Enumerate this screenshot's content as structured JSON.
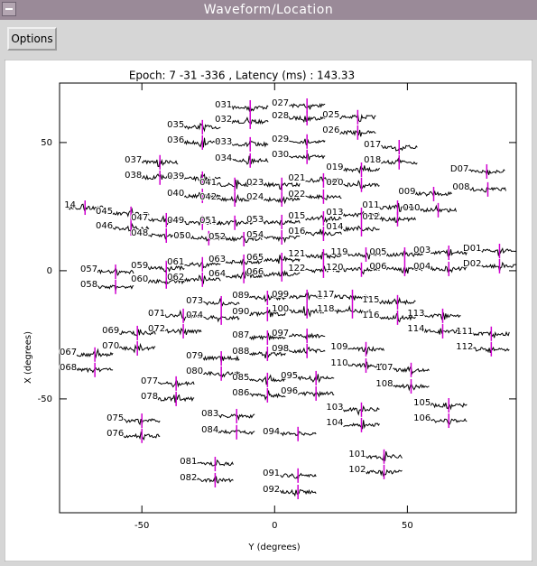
{
  "window": {
    "title": "Waveform/Location"
  },
  "toolbar": {
    "button": "Options"
  },
  "chart_data": {
    "type": "scatter",
    "title": "Epoch: 7 -31 -336 , Latency (ms) : 143.33",
    "x_label": "Y (degrees)",
    "y_label": "X (degrees)",
    "xlim": [
      -81,
      91
    ],
    "ylim": [
      -94.4,
      73.2
    ],
    "xticks": [
      -50,
      0,
      50
    ],
    "yticks": [
      -50,
      0,
      50
    ],
    "color": "#d000d0",
    "labels": [
      "031",
      "027",
      "032",
      "028",
      "025",
      "035",
      "029",
      "026",
      "036",
      "033",
      "017",
      "030",
      "034",
      "018",
      "037",
      "019",
      "D07",
      "038",
      "039",
      "021",
      "041",
      "023",
      "020",
      "009",
      "008",
      "040",
      "042",
      "024",
      "022",
      "011",
      "010",
      "14",
      "045",
      "047",
      "049",
      "051",
      "053",
      "015",
      "013",
      "012",
      "046",
      "048",
      "050",
      "052",
      "054",
      "016",
      "014",
      "119",
      "005",
      "003",
      "D01",
      "121",
      "059",
      "061",
      "063",
      "065",
      "057",
      "122",
      "120",
      "006",
      "004",
      "D02",
      "058",
      "060",
      "062",
      "064",
      "066",
      "073",
      "089",
      "099",
      "117",
      "115",
      "113",
      "090",
      "100",
      "118",
      "116",
      "071",
      "074",
      "072",
      "069",
      "114",
      "111",
      "087",
      "097",
      "070",
      "088",
      "098",
      "109",
      "112",
      "067",
      "079",
      "068",
      "110",
      "107",
      "080",
      "085",
      "095",
      "077",
      "108",
      "086",
      "096",
      "078",
      "105",
      "083",
      "103",
      "075",
      "106",
      "104",
      "084",
      "094",
      "076",
      "101",
      "081",
      "102",
      "091",
      "082",
      "092"
    ],
    "x": [
      -9.2,
      12.2,
      -9.2,
      12.2,
      31.3,
      -27.2,
      12.2,
      31.3,
      -27.2,
      -9.2,
      46.9,
      12.2,
      -9.2,
      46.9,
      -43.2,
      32.7,
      79.9,
      -43.2,
      -27.2,
      18.4,
      -15,
      2.7,
      32.7,
      59.9,
      80.3,
      -27.2,
      -15,
      2.7,
      18.4,
      46.3,
      61.6,
      -71.4,
      -54.1,
      -40.8,
      -27.2,
      -15,
      2.7,
      18.4,
      32.7,
      46.3,
      -54.1,
      -40.8,
      -24.8,
      -11.6,
      2.7,
      18.4,
      32.7,
      34.4,
      49,
      65.6,
      84.7,
      18.4,
      -40.8,
      -27.2,
      -11.6,
      2.7,
      -59.9,
      18.4,
      32.7,
      49,
      65.6,
      84.7,
      -59.9,
      -40.8,
      -27.2,
      -11.6,
      2.7,
      -20.1,
      -2.7,
      12.2,
      29.3,
      46.3,
      63.3,
      -2.7,
      12.2,
      29.3,
      46.3,
      -34.4,
      -20.1,
      -34.4,
      -51.7,
      63.3,
      81.6,
      -2.7,
      12.2,
      -51.7,
      -2.7,
      12.2,
      34.4,
      81.6,
      -67.7,
      -20.1,
      -67.7,
      34.4,
      51.4,
      -20.1,
      -2.7,
      15.6,
      -37.1,
      51.4,
      -2.7,
      15.6,
      -37.1,
      65.6,
      -14.3,
      32.7,
      -50,
      65.6,
      32.7,
      -14.3,
      8.8,
      -50,
      41.2,
      -22.4,
      41.2,
      8.8,
      -22.4,
      8.8
    ],
    "y": [
      63.7,
      64.4,
      58.1,
      59.5,
      59.9,
      56,
      50.4,
      53.9,
      50,
      49.3,
      48.2,
      44.4,
      43,
      42.3,
      42.3,
      39.4,
      38.7,
      36.3,
      35.9,
      35.2,
      33.5,
      33.5,
      33.5,
      29.9,
      31.7,
      29.2,
      27.8,
      27.8,
      28.9,
      24.6,
      23.6,
      24.6,
      22.2,
      19.7,
      18.7,
      18.7,
      19,
      20.4,
      21.8,
      20.1,
      16.5,
      13.7,
      12.7,
      12.3,
      13,
      14.4,
      16.2,
      6.3,
      6.3,
      7,
      7.7,
      5.6,
      1.1,
      2.5,
      3.5,
      4.2,
      -0.4,
      0,
      0.4,
      0.7,
      0.7,
      1.8,
      -6.3,
      -4.2,
      -3.5,
      -2.1,
      -1.4,
      -12.7,
      -10.6,
      -10.2,
      -10.2,
      -12.3,
      -17.6,
      -16.9,
      -15.8,
      -15.8,
      -18.3,
      -17.6,
      -18.3,
      -23.6,
      -24.3,
      -23.6,
      -24.6,
      -26.1,
      -25.4,
      -30.3,
      -32.4,
      -31.3,
      -30.6,
      -30.6,
      -32.7,
      -34.2,
      -38.7,
      -37,
      -38.7,
      -40.1,
      -42.6,
      -41.9,
      -44,
      -45.1,
      -48.6,
      -47.9,
      -50,
      -52.5,
      -56.7,
      -54.2,
      -58.5,
      -58.5,
      -60.2,
      -63,
      -63.7,
      -64.4,
      -72.5,
      -75.4,
      -78.5,
      -79.9,
      -81.7,
      -86.3
    ]
  }
}
